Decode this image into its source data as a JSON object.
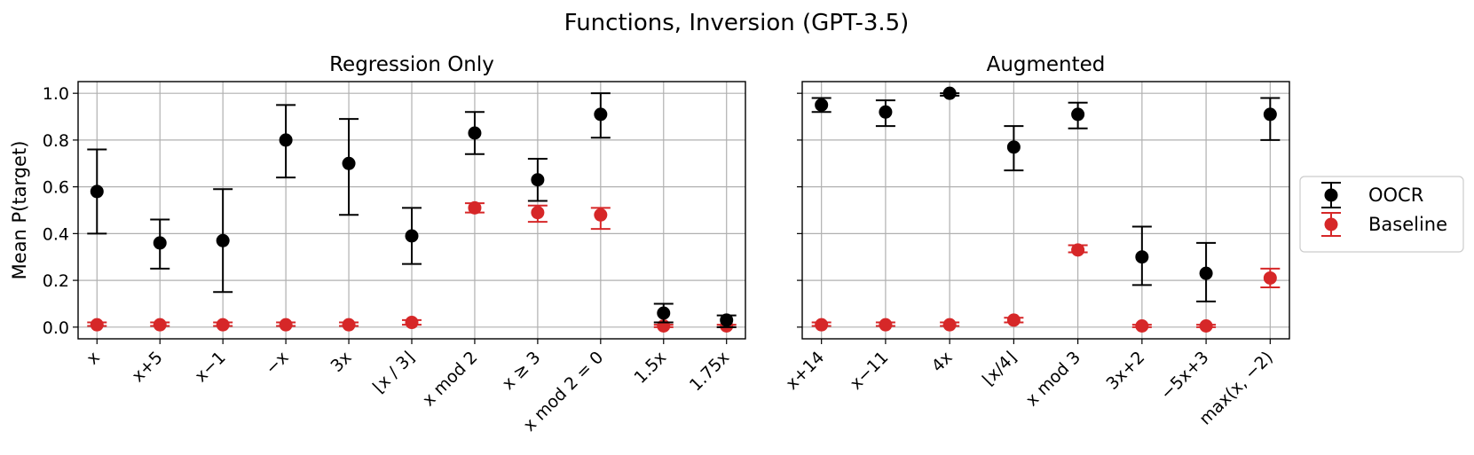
{
  "title": "Functions, Inversion (GPT-3.5)",
  "ylabel": "Mean P(target)",
  "chart_data": [
    {
      "type": "scatter",
      "title": "Regression Only",
      "ylabel": "Mean P(target)",
      "ylim": [
        -0.05,
        1.05
      ],
      "yticks": [
        0.0,
        0.2,
        0.4,
        0.6,
        0.8,
        1.0
      ],
      "ytick_labels": [
        "0.0",
        "0.2",
        "0.4",
        "0.6",
        "0.8",
        "1.0"
      ],
      "grid": true,
      "categories": [
        "x",
        "x+5",
        "x−1",
        "−x",
        "3x",
        "⌊x / 3⌋",
        "x mod 2",
        "x ≥ 3",
        "x mod 2 = 0",
        "1.5x",
        "1.75x"
      ],
      "series": [
        {
          "name": "OOCR",
          "values": [
            0.58,
            0.36,
            0.37,
            0.8,
            0.7,
            0.39,
            0.83,
            0.63,
            0.91,
            0.06,
            0.03
          ],
          "lower": [
            0.4,
            0.25,
            0.15,
            0.64,
            0.48,
            0.27,
            0.74,
            0.54,
            0.81,
            0.02,
            0.0
          ],
          "upper": [
            0.76,
            0.46,
            0.59,
            0.95,
            0.89,
            0.51,
            0.92,
            0.72,
            1.0,
            0.1,
            0.05
          ]
        },
        {
          "name": "Baseline",
          "values": [
            0.01,
            0.01,
            0.01,
            0.01,
            0.01,
            0.02,
            0.51,
            0.49,
            0.48,
            0.005,
            0.005
          ],
          "lower": [
            0.005,
            0.005,
            0.005,
            0.005,
            0.005,
            0.01,
            0.49,
            0.45,
            0.42,
            0.0,
            0.0
          ],
          "upper": [
            0.02,
            0.02,
            0.02,
            0.02,
            0.02,
            0.03,
            0.53,
            0.52,
            0.51,
            0.01,
            0.01
          ]
        }
      ]
    },
    {
      "type": "scatter",
      "title": "Augmented",
      "ylim": [
        -0.05,
        1.05
      ],
      "grid": true,
      "categories": [
        "x+14",
        "x−11",
        "4x",
        "⌊x/4⌋",
        "x mod 3",
        "3x+2",
        "−5x+3",
        "max(x, −2)"
      ],
      "series": [
        {
          "name": "OOCR",
          "values": [
            0.95,
            0.92,
            1.0,
            0.77,
            0.91,
            0.3,
            0.23,
            0.91
          ],
          "lower": [
            0.92,
            0.86,
            0.99,
            0.67,
            0.85,
            0.18,
            0.11,
            0.8
          ],
          "upper": [
            0.98,
            0.97,
            1.0,
            0.86,
            0.96,
            0.43,
            0.36,
            0.98
          ]
        },
        {
          "name": "Baseline",
          "values": [
            0.01,
            0.01,
            0.01,
            0.03,
            0.33,
            0.005,
            0.005,
            0.21
          ],
          "lower": [
            0.005,
            0.005,
            0.005,
            0.02,
            0.32,
            0.0,
            0.0,
            0.17
          ],
          "upper": [
            0.02,
            0.02,
            0.02,
            0.04,
            0.35,
            0.01,
            0.01,
            0.25
          ]
        }
      ]
    }
  ],
  "legend": {
    "placement": "right",
    "entries": [
      {
        "label": "OOCR",
        "color": "#000000"
      },
      {
        "label": "Baseline",
        "color": "#d62728"
      }
    ]
  }
}
